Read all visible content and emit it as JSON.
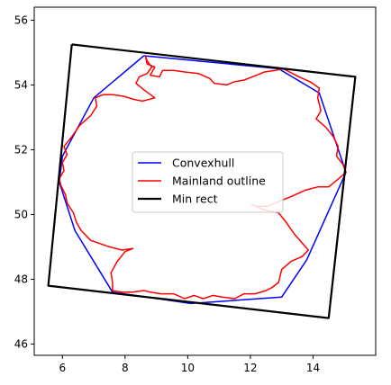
{
  "chart_data": {
    "type": "line",
    "title": "",
    "xlabel": "",
    "ylabel": "",
    "xlim": [
      5.1,
      16.0
    ],
    "ylim": [
      45.65,
      56.4
    ],
    "xticks": [
      6,
      8,
      10,
      12,
      14
    ],
    "yticks": [
      46,
      48,
      50,
      52,
      54,
      56
    ],
    "grid": false,
    "legend_position": "center",
    "series": [
      {
        "name": "Convexhull",
        "color": "#0000ff",
        "closed": true,
        "x": [
          8.6,
          12.9,
          14.2,
          15.05,
          13.8,
          13.0,
          10.1,
          7.6,
          6.4,
          5.9,
          6.0,
          7.0,
          8.6
        ],
        "y": [
          54.9,
          54.5,
          53.75,
          51.3,
          48.6,
          47.45,
          47.25,
          47.6,
          49.5,
          51.0,
          51.8,
          53.6,
          54.9
        ]
      },
      {
        "name": "Mainland outline",
        "color": "#ff0000",
        "closed": true,
        "x": [
          8.65,
          8.7,
          8.95,
          8.8,
          9.1,
          9.2,
          9.55,
          9.9,
          10.35,
          10.7,
          10.85,
          11.25,
          11.5,
          11.8,
          12.2,
          12.45,
          12.8,
          13.05,
          13.15,
          13.55,
          13.9,
          14.2,
          14.15,
          14.25,
          14.1,
          14.4,
          14.65,
          14.8,
          14.75,
          14.95,
          15.05,
          14.75,
          14.5,
          14.15,
          13.75,
          13.3,
          12.9,
          12.55,
          12.2,
          12.05,
          12.4,
          12.9,
          13.15,
          13.4,
          13.85,
          13.65,
          13.3,
          13.0,
          12.9,
          12.7,
          12.5,
          12.15,
          11.8,
          11.5,
          11.1,
          10.8,
          10.5,
          10.2,
          9.9,
          9.55,
          9.15,
          8.8,
          8.6,
          8.25,
          7.9,
          7.6,
          7.6,
          7.55,
          7.75,
          8.0,
          8.25,
          7.9,
          7.5,
          7.2,
          6.9,
          6.6,
          6.45,
          6.35,
          6.15,
          6.1,
          5.95,
          5.9,
          6.05,
          6.0,
          6.15,
          6.05,
          6.3,
          6.55,
          6.9,
          7.1,
          7.05,
          7.3,
          7.6,
          7.95,
          8.3,
          8.55,
          8.95,
          8.6,
          8.35,
          8.45,
          8.7,
          8.85,
          8.7,
          8.65
        ],
        "y": [
          54.9,
          54.65,
          54.55,
          54.3,
          54.25,
          54.45,
          54.45,
          54.4,
          54.35,
          54.2,
          54.05,
          54.0,
          54.1,
          54.15,
          54.3,
          54.4,
          54.45,
          54.5,
          54.45,
          54.25,
          54.1,
          53.9,
          53.6,
          53.2,
          52.95,
          52.7,
          52.4,
          52.1,
          51.8,
          51.55,
          51.3,
          51.05,
          50.85,
          50.85,
          50.75,
          50.55,
          50.4,
          50.25,
          50.25,
          50.3,
          50.15,
          50.05,
          49.75,
          49.4,
          48.9,
          48.7,
          48.55,
          48.3,
          47.9,
          47.75,
          47.65,
          47.55,
          47.55,
          47.4,
          47.45,
          47.5,
          47.4,
          47.5,
          47.4,
          47.55,
          47.55,
          47.6,
          47.65,
          47.6,
          47.6,
          47.65,
          47.9,
          48.2,
          48.55,
          48.85,
          48.95,
          48.9,
          49.0,
          49.1,
          49.2,
          49.5,
          49.75,
          50.05,
          50.35,
          50.6,
          50.9,
          51.1,
          51.35,
          51.6,
          51.85,
          52.1,
          52.4,
          52.75,
          53.05,
          53.35,
          53.6,
          53.7,
          53.7,
          53.65,
          53.55,
          53.5,
          53.6,
          53.85,
          54.05,
          54.25,
          54.35,
          54.55,
          54.75,
          54.9
        ]
      },
      {
        "name": "Min rect",
        "color": "#000000",
        "closed": true,
        "x": [
          6.3,
          15.35,
          14.5,
          5.55,
          6.3
        ],
        "y": [
          55.25,
          54.25,
          46.8,
          47.8,
          55.25
        ]
      }
    ]
  }
}
